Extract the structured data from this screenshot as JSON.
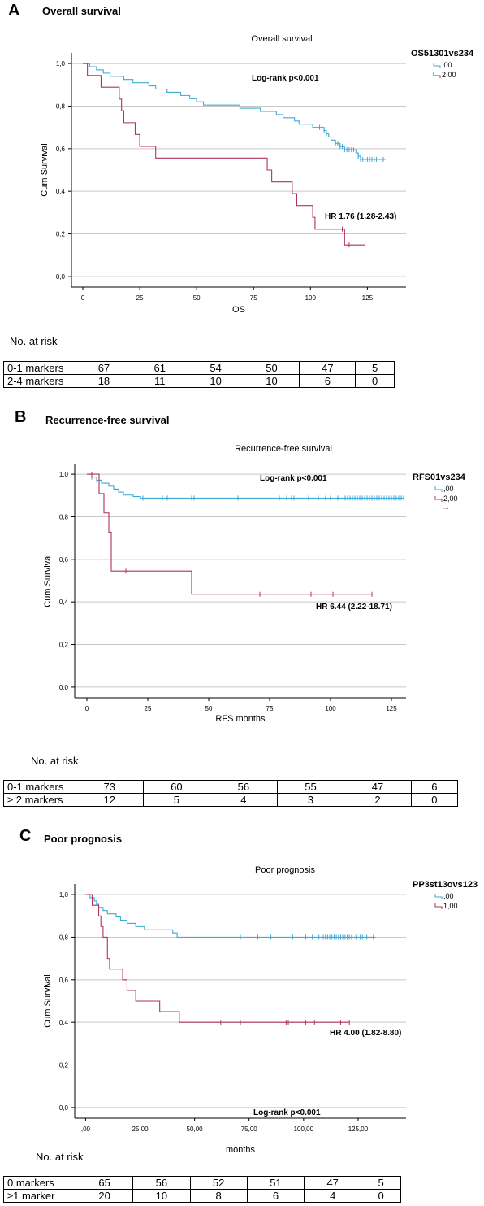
{
  "panels": [
    {
      "letter": "A",
      "heading": "Overall survival",
      "chart_data": {
        "type": "line",
        "title": "Overall survival",
        "xlabel": "OS",
        "ylabel": "Cum Survival",
        "xlim": [
          -5,
          142
        ],
        "ylim": [
          -0.05,
          1.05
        ],
        "x_ticks": [
          0,
          25,
          50,
          75,
          100,
          125
        ],
        "x_tick_labels": [
          "0",
          "25",
          "50",
          "75",
          "100",
          "125"
        ],
        "y_ticks": [
          0,
          0.2,
          0.4,
          0.6,
          0.8,
          1.0
        ],
        "y_tick_labels": [
          "0,0",
          "0,2",
          "0,4",
          "0,6",
          "0,8",
          "1,0"
        ],
        "grid": "horizontal",
        "legend_title": "OS51301vs234",
        "legend_position": "top-right",
        "annotations": [
          "Log-rank p<0.001",
          "HR 1.76 (1.28-2.43)"
        ],
        "series": [
          {
            "name": ",00",
            "color": "#3fa9d6",
            "steps": [
              [
                0,
                1.0
              ],
              [
                3,
                0.985
              ],
              [
                6,
                0.97
              ],
              [
                9,
                0.955
              ],
              [
                12,
                0.94
              ],
              [
                18,
                0.925
              ],
              [
                22,
                0.91
              ],
              [
                29,
                0.895
              ],
              [
                32,
                0.88
              ],
              [
                37,
                0.865
              ],
              [
                43,
                0.85
              ],
              [
                47,
                0.835
              ],
              [
                50,
                0.82
              ],
              [
                53,
                0.805
              ],
              [
                69,
                0.79
              ],
              [
                78,
                0.775
              ],
              [
                85,
                0.76
              ],
              [
                88,
                0.745
              ],
              [
                93,
                0.73
              ],
              [
                95,
                0.715
              ],
              [
                101,
                0.7
              ],
              [
                106,
                0.685
              ],
              [
                107,
                0.67
              ],
              [
                108,
                0.655
              ],
              [
                109,
                0.64
              ],
              [
                111,
                0.625
              ],
              [
                113,
                0.61
              ],
              [
                115,
                0.595
              ],
              [
                120,
                0.58
              ],
              [
                121,
                0.565
              ],
              [
                122,
                0.55
              ]
            ],
            "end": 133,
            "censored": [
              104,
              105,
              106,
              107,
              111,
              112,
              113,
              114,
              115,
              116,
              117,
              118,
              119,
              121,
              122,
              123,
              124,
              125,
              126,
              127,
              128,
              129,
              132
            ]
          },
          {
            "name": "2,00",
            "color": "#b0335a",
            "steps": [
              [
                0,
                1.0
              ],
              [
                2,
                0.944
              ],
              [
                8,
                0.889
              ],
              [
                16,
                0.833
              ],
              [
                17,
                0.778
              ],
              [
                18,
                0.722
              ],
              [
                23,
                0.667
              ],
              [
                25,
                0.611
              ],
              [
                32,
                0.556
              ],
              [
                81,
                0.5
              ],
              [
                83,
                0.444
              ],
              [
                92,
                0.389
              ],
              [
                94,
                0.333
              ],
              [
                101,
                0.278
              ],
              [
                102,
                0.222
              ],
              [
                115,
                0.148
              ]
            ],
            "end": 124,
            "censored": [
              114,
              117,
              124
            ]
          }
        ]
      },
      "risk_title": "No. at risk",
      "risk_rows": [
        {
          "label": "0-1 markers",
          "values": [
            "67",
            "61",
            "54",
            "50",
            "47",
            "5"
          ]
        },
        {
          "label": "2-4 markers",
          "values": [
            "18",
            "11",
            "10",
            "10",
            "6",
            "0"
          ]
        }
      ]
    },
    {
      "letter": "B",
      "heading": "Recurrence-free survival",
      "chart_data": {
        "type": "line",
        "title": "Recurrence-free survival",
        "xlabel": "RFS months",
        "ylabel": "Cum Survival",
        "xlim": [
          -5,
          131
        ],
        "ylim": [
          -0.05,
          1.05
        ],
        "x_ticks": [
          0,
          25,
          50,
          75,
          100,
          125
        ],
        "x_tick_labels": [
          "0",
          "25",
          "50",
          "75",
          "100",
          "125"
        ],
        "y_ticks": [
          0,
          0.2,
          0.4,
          0.6,
          0.8,
          1.0
        ],
        "y_tick_labels": [
          "0,0",
          "0,2",
          "0,4",
          "0,6",
          "0,8",
          "1,0"
        ],
        "grid": "horizontal",
        "legend_title": "RFS01vs234",
        "legend_position": "top-right",
        "annotations": [
          "Log-rank p<0.001",
          "HR 6.44 (2.22-18.71)"
        ],
        "series": [
          {
            "name": ",00",
            "color": "#3fa9d6",
            "steps": [
              [
                0,
                1.0
              ],
              [
                2,
                0.986
              ],
              [
                4,
                0.972
              ],
              [
                6,
                0.958
              ],
              [
                9,
                0.944
              ],
              [
                11,
                0.93
              ],
              [
                13,
                0.916
              ],
              [
                15,
                0.902
              ],
              [
                19,
                0.895
              ],
              [
                22,
                0.888
              ]
            ],
            "end": 130,
            "censored": [
              2,
              4,
              23,
              31,
              33,
              43,
              44,
              62,
              79,
              82,
              84,
              85,
              91,
              95,
              98,
              100,
              103,
              106,
              107,
              108,
              109,
              110,
              111,
              112,
              113,
              114,
              115,
              116,
              117,
              118,
              119,
              120,
              121,
              122,
              123,
              124,
              125,
              126,
              127,
              128,
              129,
              130
            ]
          },
          {
            "name": "2,00",
            "color": "#b0335a",
            "steps": [
              [
                0,
                1.0
              ],
              [
                5,
                0.909
              ],
              [
                7,
                0.818
              ],
              [
                9,
                0.727
              ],
              [
                10,
                0.545
              ],
              [
                43,
                0.436
              ]
            ],
            "end": 117,
            "censored": [
              2,
              16,
              71,
              92,
              101,
              117
            ]
          }
        ]
      },
      "risk_title": "No. at risk",
      "risk_rows": [
        {
          "label": "0-1 markers",
          "values": [
            "73",
            "60",
            "56",
            "55",
            "47",
            "6"
          ]
        },
        {
          "label": "≥ 2 markers",
          "values": [
            "12",
            "5",
            "4",
            "3",
            "2",
            "0"
          ]
        }
      ]
    },
    {
      "letter": "C",
      "heading": "Poor prognosis",
      "chart_data": {
        "type": "line",
        "title": "Poor prognosis",
        "xlabel": "months",
        "ylabel": "Cum Survival",
        "xlim": [
          -5,
          147
        ],
        "ylim": [
          -0.05,
          1.05
        ],
        "x_ticks": [
          0,
          25,
          50,
          75,
          100,
          125
        ],
        "x_tick_labels": [
          ",00",
          "25,00",
          "50,00",
          "75,00",
          "100,00",
          "125,00"
        ],
        "y_ticks": [
          0,
          0.2,
          0.4,
          0.6,
          0.8,
          1.0
        ],
        "y_tick_labels": [
          "0,0",
          "0,2",
          "0,4",
          "0,6",
          "0,8",
          "1,0"
        ],
        "grid": "horizontal",
        "legend_title": "PP3st13ovs123",
        "legend_position": "top-right",
        "annotations": [
          "HR 4.00 (1.82-8.80)",
          "Log-rank p<0.001"
        ],
        "series": [
          {
            "name": ",00",
            "color": "#3fa9d6",
            "steps": [
              [
                0,
                1.0
              ],
              [
                2,
                0.985
              ],
              [
                4,
                0.97
              ],
              [
                5,
                0.955
              ],
              [
                6,
                0.94
              ],
              [
                8,
                0.925
              ],
              [
                10,
                0.91
              ],
              [
                14,
                0.895
              ],
              [
                16,
                0.88
              ],
              [
                19,
                0.865
              ],
              [
                23,
                0.85
              ],
              [
                27,
                0.835
              ],
              [
                40,
                0.82
              ],
              [
                42,
                0.8
              ]
            ],
            "end": 133,
            "censored": [
              71,
              79,
              85,
              95,
              101,
              104,
              107,
              109,
              110,
              111,
              112,
              113,
              114,
              115,
              116,
              117,
              118,
              119,
              120,
              121,
              122,
              124,
              126,
              127,
              129,
              132
            ]
          },
          {
            "name": "1,00",
            "color": "#b0335a",
            "steps": [
              [
                0,
                1.0
              ],
              [
                3,
                0.95
              ],
              [
                6,
                0.9
              ],
              [
                7,
                0.85
              ],
              [
                8,
                0.8
              ],
              [
                10,
                0.7
              ],
              [
                11,
                0.65
              ],
              [
                17,
                0.6
              ],
              [
                19,
                0.55
              ],
              [
                23,
                0.5
              ],
              [
                34,
                0.45
              ],
              [
                43,
                0.4
              ]
            ],
            "end": 121,
            "censored": [
              62,
              71,
              92,
              93,
              101,
              105,
              117,
              121
            ]
          }
        ]
      },
      "risk_title": "No. at risk",
      "risk_rows": [
        {
          "label": "0 markers",
          "values": [
            "65",
            "56",
            "52",
            "51",
            "47",
            "5"
          ]
        },
        {
          "label": "≥1 marker",
          "values": [
            "20",
            "10",
            "8",
            "6",
            "4",
            "0"
          ]
        }
      ]
    }
  ]
}
